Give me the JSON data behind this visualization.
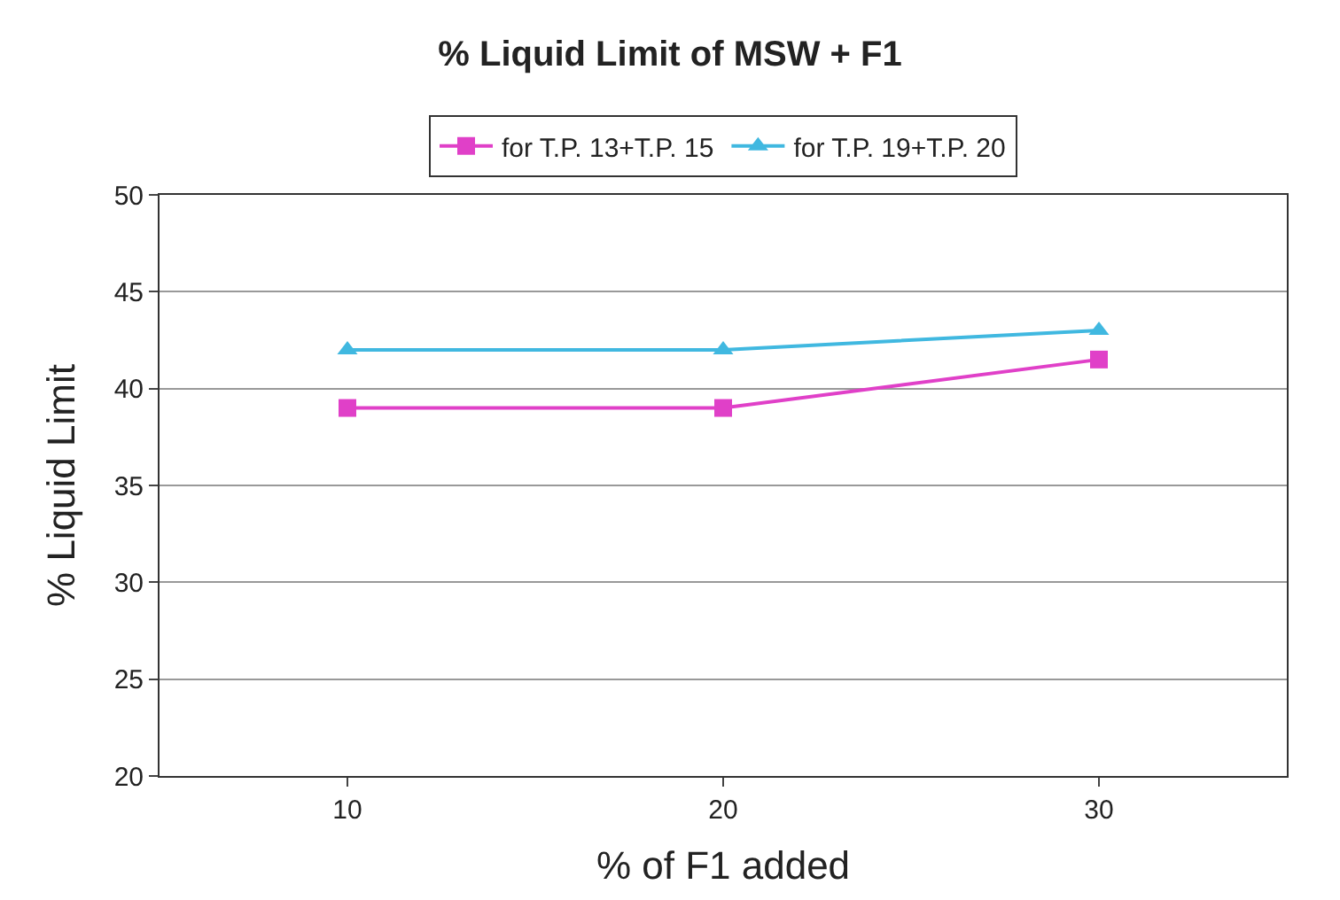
{
  "chart_data": {
    "type": "line",
    "title": "% Liquid Limit of MSW + F1",
    "xlabel": "% of F1 added",
    "ylabel": "% Liquid Limit",
    "categories": [
      "10",
      "20",
      "30"
    ],
    "series": [
      {
        "name": "for T.P. 13+T.P. 15",
        "color": "#e040c8",
        "marker": "square",
        "values": [
          39,
          39,
          41.5
        ]
      },
      {
        "name": "for T.P. 19+T.P. 20",
        "color": "#40b8e0",
        "marker": "triangle",
        "values": [
          42,
          42,
          43
        ]
      }
    ],
    "ylim": [
      20,
      50
    ],
    "yticks": [
      20,
      25,
      30,
      35,
      40,
      45,
      50
    ],
    "grid": "y",
    "legend": "top",
    "line_style": "solid"
  }
}
